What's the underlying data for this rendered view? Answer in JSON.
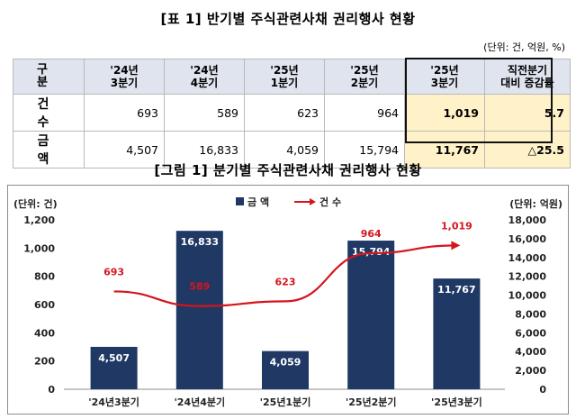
{
  "table": {
    "title": "[표 1] 반기별 주식관련사채 권리행사 현황",
    "unit": "(단위: 건, 억원, %)",
    "header": {
      "gubun": "구 분",
      "periods": [
        [
          "'24년",
          "3분기"
        ],
        [
          "'24년",
          "4분기"
        ],
        [
          "'25년",
          "1분기"
        ],
        [
          "'25년",
          "2분기"
        ],
        [
          "'25년",
          "3분기"
        ]
      ],
      "change": [
        "직전분기",
        "대비 증감률"
      ]
    },
    "rows": [
      {
        "label": "건 수",
        "values": [
          "693",
          "589",
          "623",
          "964",
          "1,019"
        ],
        "change": "5.7"
      },
      {
        "label": "금 액",
        "values": [
          "4,507",
          "16,833",
          "4,059",
          "15,794",
          "11,767"
        ],
        "change": "△25.5"
      }
    ]
  },
  "figure": {
    "caption": "[그림 1] 분기별 주식관련사채 권리행사 현황"
  },
  "chart_data": {
    "type": "bar",
    "title": "[그림 1] 분기별 주식관련사채 권리행사 현황",
    "categories": [
      "'24년3분기",
      "'24년4분기",
      "'25년1분기",
      "'25년2분기",
      "'25년3분기"
    ],
    "left_axis_label": "(단위: 건)",
    "right_axis_label": "(단위: 억원)",
    "left_ylim": [
      0,
      1200
    ],
    "right_ylim": [
      0,
      18000
    ],
    "left_ticks": [
      "0",
      "200",
      "400",
      "600",
      "800",
      "1,000",
      "1,200"
    ],
    "right_ticks": [
      "0",
      "2,000",
      "4,000",
      "6,000",
      "8,000",
      "10,000",
      "12,000",
      "14,000",
      "16,000",
      "18,000"
    ],
    "series": [
      {
        "name": "금 액",
        "kind": "bar",
        "axis": "right",
        "values": [
          4507,
          16833,
          4059,
          15794,
          11767
        ],
        "labels": [
          "4,507",
          "16,833",
          "4,059",
          "15,794",
          "11,767"
        ],
        "color": "#1f3864"
      },
      {
        "name": "건 수",
        "kind": "line",
        "axis": "left",
        "values": [
          693,
          589,
          623,
          964,
          1019
        ],
        "labels": [
          "693",
          "589",
          "623",
          "964",
          "1,019"
        ],
        "color": "#d6141c"
      }
    ],
    "legend": "top-center"
  }
}
